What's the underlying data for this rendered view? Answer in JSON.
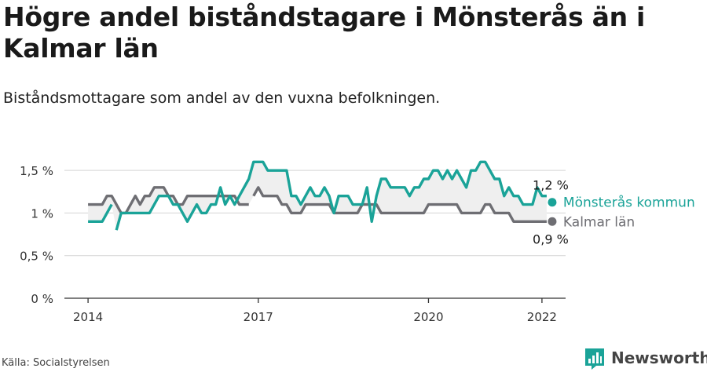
{
  "title": "Högre andel biståndstagare i Mönsterås än i Kalmar län",
  "subtitle": "Biståndsmottagare som andel av den vuxna befolkningen.",
  "source": "Källa: Socialstyrelsen",
  "brand": {
    "name": "Newsworthy",
    "logo_icon": "newsworthy-logo-icon"
  },
  "colors": {
    "primary": "#1aa398",
    "secondary": "#6e6e73",
    "grid": "#d4d4d4",
    "band": "#efefef"
  },
  "chart_data": {
    "type": "line",
    "title": "Högre andel biståndstagare i Mönsterås än i Kalmar län",
    "subtitle": "Biståndsmottagare som andel av den vuxna befolkningen.",
    "xlabel": "",
    "ylabel": "",
    "ylim": [
      0,
      1.75
    ],
    "xlim": [
      "2013-08",
      "2022-06"
    ],
    "y_ticks": [
      0,
      0.5,
      1,
      1.5
    ],
    "y_tick_labels": [
      "0 %",
      "0,5 %",
      "1 %",
      "1,5 %"
    ],
    "x_ticks": [
      "2014-01",
      "2017-01",
      "2020-01",
      "2022-01"
    ],
    "x_tick_labels": [
      "2014",
      "2017",
      "2020",
      "2022"
    ],
    "grid": "horizontal",
    "legend": "direct labels at line ends (right)",
    "series": [
      {
        "name": "Mönsterås kommun",
        "color": "#1aa398",
        "end_label": "1,2 %",
        "segments": [
          {
            "x": [
              "2014-01",
              "2014-02",
              "2014-03",
              "2014-04",
              "2014-05",
              "2014-06"
            ],
            "y": [
              0.9,
              0.9,
              0.9,
              0.9,
              1.0,
              1.1
            ]
          },
          {
            "x": [
              "2014-07",
              "2014-08",
              "2014-09",
              "2014-10",
              "2014-11",
              "2014-12",
              "2015-01",
              "2015-02",
              "2015-03",
              "2015-04",
              "2015-05",
              "2015-06",
              "2015-07",
              "2015-08",
              "2015-09",
              "2015-10",
              "2015-11",
              "2015-12",
              "2016-01",
              "2016-02",
              "2016-03",
              "2016-04",
              "2016-05",
              "2016-06",
              "2016-07",
              "2016-08",
              "2016-09",
              "2016-10",
              "2016-11",
              "2016-12",
              "2017-01",
              "2017-02",
              "2017-03",
              "2017-04",
              "2017-05",
              "2017-06",
              "2017-07",
              "2017-08",
              "2017-09",
              "2017-10",
              "2017-11",
              "2017-12",
              "2018-01",
              "2018-02",
              "2018-03",
              "2018-04",
              "2018-05",
              "2018-06",
              "2018-07",
              "2018-08",
              "2018-09",
              "2018-10",
              "2018-11",
              "2018-12",
              "2019-01",
              "2019-02",
              "2019-03",
              "2019-04",
              "2019-05",
              "2019-06",
              "2019-07",
              "2019-08",
              "2019-09",
              "2019-10",
              "2019-11",
              "2019-12",
              "2020-01",
              "2020-02",
              "2020-03",
              "2020-04",
              "2020-05",
              "2020-06",
              "2020-07",
              "2020-08",
              "2020-09",
              "2020-10",
              "2020-11",
              "2020-12",
              "2021-01",
              "2021-02",
              "2021-03",
              "2021-04",
              "2021-05",
              "2021-06",
              "2021-07",
              "2021-08",
              "2021-09",
              "2021-10",
              "2021-11",
              "2021-12",
              "2022-01",
              "2022-02"
            ],
            "y": [
              0.8,
              1.0,
              1.0,
              1.0,
              1.0,
              1.0,
              1.0,
              1.0,
              1.1,
              1.2,
              1.2,
              1.2,
              1.1,
              1.1,
              1.0,
              0.9,
              1.0,
              1.1,
              1.0,
              1.0,
              1.1,
              1.1,
              1.3,
              1.1,
              1.2,
              1.1,
              1.2,
              1.3,
              1.4,
              1.6,
              1.6,
              1.6,
              1.5,
              1.5,
              1.5,
              1.5,
              1.5,
              1.2,
              1.2,
              1.1,
              1.2,
              1.3,
              1.2,
              1.2,
              1.3,
              1.2,
              1.0,
              1.2,
              1.2,
              1.2,
              1.1,
              1.1,
              1.1,
              1.3,
              0.9,
              1.2,
              1.4,
              1.4,
              1.3,
              1.3,
              1.3,
              1.3,
              1.2,
              1.3,
              1.3,
              1.4,
              1.4,
              1.5,
              1.5,
              1.4,
              1.5,
              1.4,
              1.5,
              1.4,
              1.3,
              1.5,
              1.5,
              1.6,
              1.6,
              1.5,
              1.4,
              1.4,
              1.2,
              1.3,
              1.2,
              1.2,
              1.1,
              1.1,
              1.1,
              1.3,
              1.2,
              1.2
            ]
          }
        ]
      },
      {
        "name": "Kalmar län",
        "color": "#6e6e73",
        "end_label": "0,9 %",
        "segments": [
          {
            "x": [
              "2014-01",
              "2014-02",
              "2014-03",
              "2014-04",
              "2014-05",
              "2014-06",
              "2014-07",
              "2014-08",
              "2014-09",
              "2014-10",
              "2014-11",
              "2014-12",
              "2015-01",
              "2015-02",
              "2015-03",
              "2015-04",
              "2015-05",
              "2015-06",
              "2015-07",
              "2015-08",
              "2015-09",
              "2015-10",
              "2015-11",
              "2015-12",
              "2016-01",
              "2016-02",
              "2016-03",
              "2016-04",
              "2016-05",
              "2016-06",
              "2016-07",
              "2016-08",
              "2016-09",
              "2016-10",
              "2016-11"
            ],
            "y": [
              1.1,
              1.1,
              1.1,
              1.1,
              1.2,
              1.2,
              1.1,
              1.0,
              1.0,
              1.1,
              1.2,
              1.1,
              1.2,
              1.2,
              1.3,
              1.3,
              1.3,
              1.2,
              1.2,
              1.1,
              1.1,
              1.2,
              1.2,
              1.2,
              1.2,
              1.2,
              1.2,
              1.2,
              1.2,
              1.2,
              1.2,
              1.2,
              1.1,
              1.1,
              1.1
            ]
          },
          {
            "x": [
              "2016-12",
              "2017-01",
              "2017-02",
              "2017-03",
              "2017-04",
              "2017-05",
              "2017-06",
              "2017-07",
              "2017-08",
              "2017-09",
              "2017-10",
              "2017-11",
              "2017-12",
              "2018-01",
              "2018-02",
              "2018-03",
              "2018-04",
              "2018-05",
              "2018-06",
              "2018-07",
              "2018-08",
              "2018-09",
              "2018-10",
              "2018-11",
              "2018-12",
              "2019-01",
              "2019-02",
              "2019-03",
              "2019-04",
              "2019-05",
              "2019-06",
              "2019-07",
              "2019-08",
              "2019-09",
              "2019-10",
              "2019-11",
              "2019-12",
              "2020-01",
              "2020-02",
              "2020-03",
              "2020-04",
              "2020-05",
              "2020-06",
              "2020-07",
              "2020-08",
              "2020-09",
              "2020-10",
              "2020-11",
              "2020-12",
              "2021-01",
              "2021-02",
              "2021-03",
              "2021-04",
              "2021-05",
              "2021-06",
              "2021-07",
              "2021-08",
              "2021-09",
              "2021-10",
              "2021-11",
              "2021-12",
              "2022-01",
              "2022-02"
            ],
            "y": [
              1.2,
              1.3,
              1.2,
              1.2,
              1.2,
              1.2,
              1.1,
              1.1,
              1.0,
              1.0,
              1.0,
              1.1,
              1.1,
              1.1,
              1.1,
              1.1,
              1.1,
              1.0,
              1.0,
              1.0,
              1.0,
              1.0,
              1.0,
              1.1,
              1.1,
              1.1,
              1.1,
              1.0,
              1.0,
              1.0,
              1.0,
              1.0,
              1.0,
              1.0,
              1.0,
              1.0,
              1.0,
              1.1,
              1.1,
              1.1,
              1.1,
              1.1,
              1.1,
              1.1,
              1.0,
              1.0,
              1.0,
              1.0,
              1.0,
              1.1,
              1.1,
              1.0,
              1.0,
              1.0,
              1.0,
              0.9,
              0.9,
              0.9,
              0.9,
              0.9,
              0.9,
              0.9,
              0.9
            ]
          }
        ]
      }
    ]
  }
}
